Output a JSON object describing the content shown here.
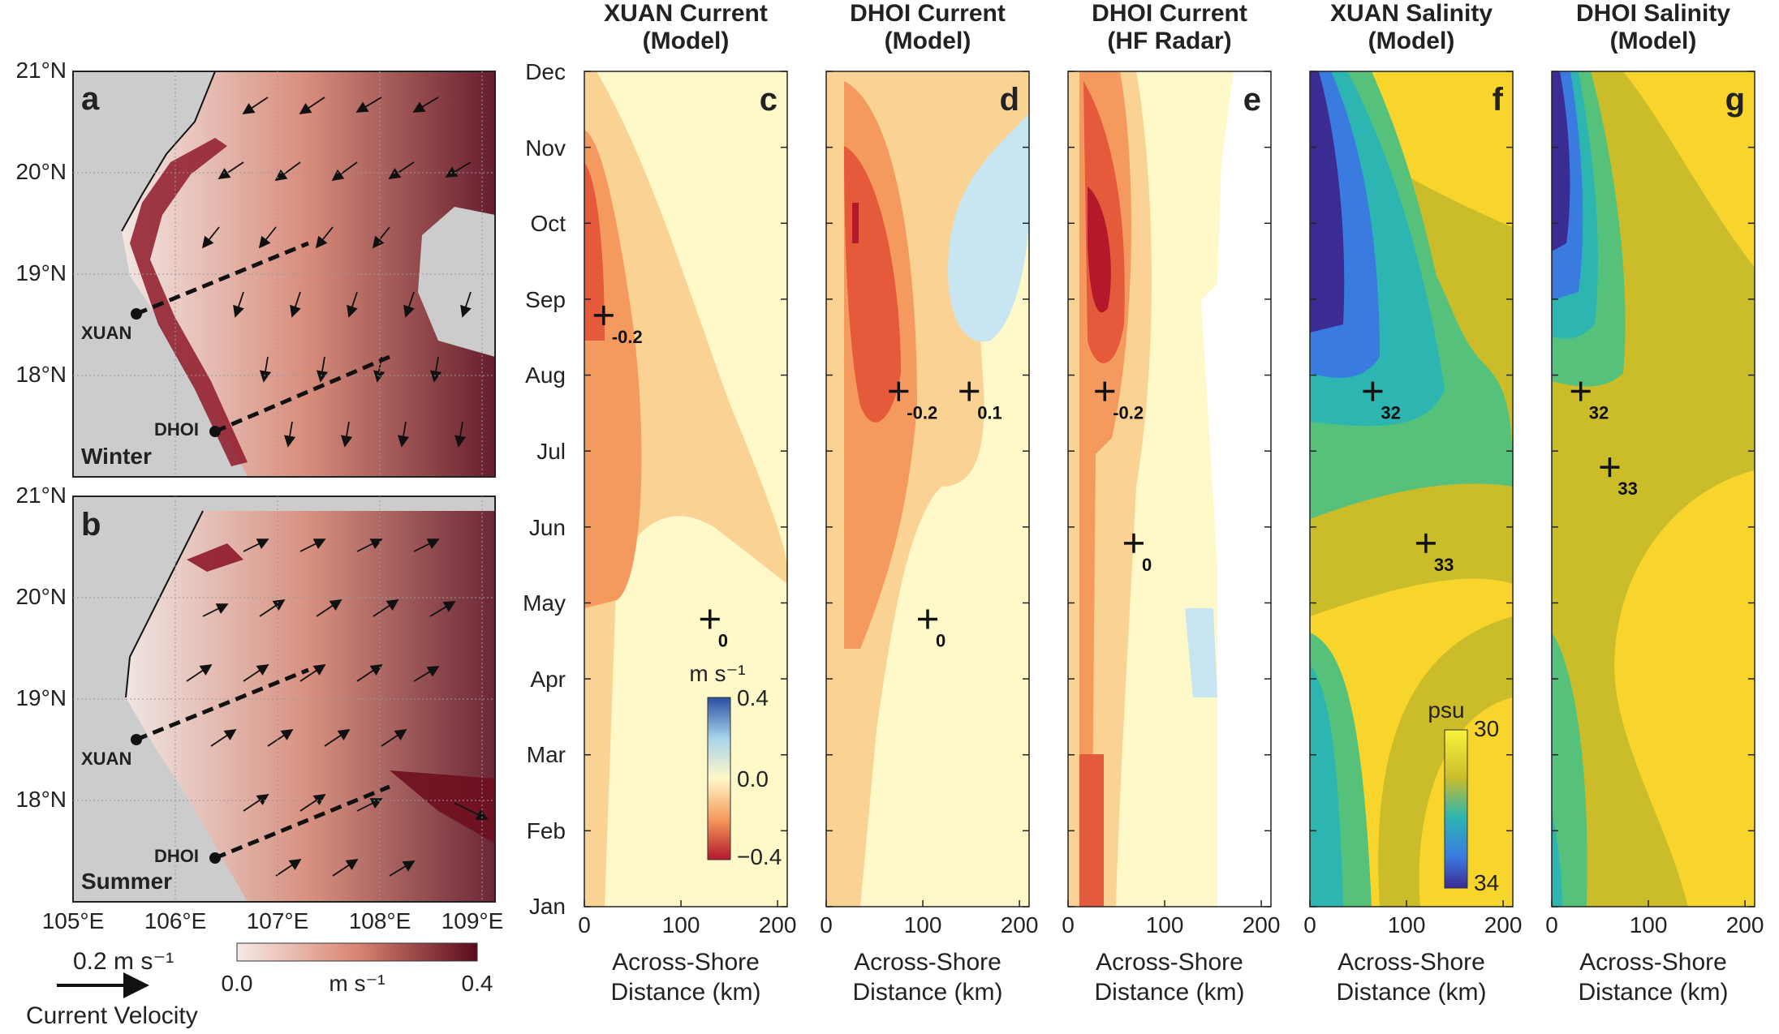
{
  "colors": {
    "land": "#cccccc",
    "sea_low": "#f6e9e6",
    "sea_mid": "#d98572",
    "sea_high": "#5a0a1c",
    "current_neg_strong": "#b3182b",
    "current_neg": "#e45a3a",
    "current_neg_mid": "#f59a5e",
    "current_neg_weak": "#fad394",
    "current_zero": "#fff8c8",
    "current_pos": "#c8e6f2",
    "sal_low": "#3b2c93",
    "sal_mid": "#2db5b1",
    "sal_green": "#56c17b",
    "sal_olive": "#cbbd2a",
    "sal_high": "#f7d52d"
  },
  "maps": {
    "lat_ticks": [
      "21°N",
      "20°N",
      "19°N",
      "18°N"
    ],
    "lon_ticks": [
      "105°E",
      "106°E",
      "107°E",
      "108°E",
      "109°E"
    ],
    "panels": [
      {
        "label": "a",
        "season": "Winter"
      },
      {
        "label": "b",
        "season": "Summer"
      }
    ],
    "sites": [
      "XUAN",
      "DHOI"
    ],
    "legend": {
      "vector_label": "0.2 m s⁻¹",
      "vector_caption": "Current Velocity",
      "colorbar_min": "0.0",
      "colorbar_max": "0.4",
      "colorbar_unit": "m s⁻¹"
    }
  },
  "contour_panels": {
    "month_ticks": [
      "Dec",
      "Nov",
      "Oct",
      "Sep",
      "Aug",
      "Jul",
      "Jun",
      "May",
      "Apr",
      "Mar",
      "Feb",
      "Jan"
    ],
    "x_ticks": [
      "0",
      "100",
      "200"
    ],
    "xlabel_line1": "Across-Shore",
    "xlabel_line2": "Distance (km)",
    "panels": [
      {
        "label": "c",
        "title1": "XUAN Current",
        "title2": "(Model)"
      },
      {
        "label": "d",
        "title1": "DHOI Current",
        "title2": "(Model)"
      },
      {
        "label": "e",
        "title1": "DHOI Current",
        "title2": "(HF Radar)"
      },
      {
        "label": "f",
        "title1": "XUAN Salinity",
        "title2": "(Model)"
      },
      {
        "label": "g",
        "title1": "DHOI Salinity",
        "title2": "(Model)"
      }
    ],
    "current_colorbar": {
      "unit": "m s⁻¹",
      "top": "0.4",
      "mid": "0.0",
      "bottom": "−0.4"
    },
    "salinity_colorbar": {
      "unit": "psu",
      "top": "30",
      "bottom": "34"
    }
  },
  "chart_data": [
    {
      "type": "heatmap",
      "title": "XUAN Current (Model)",
      "panel": "c",
      "xlabel": "Across-Shore Distance (km)",
      "xlim": [
        0,
        210
      ],
      "y_categories": [
        "Jan",
        "Feb",
        "Mar",
        "Apr",
        "May",
        "Jun",
        "Jul",
        "Aug",
        "Sep",
        "Oct",
        "Nov",
        "Dec"
      ],
      "colorbar": {
        "unit": "m s⁻¹",
        "range": [
          -0.4,
          0.4
        ]
      },
      "contour_labels": [
        {
          "text": "-0.2",
          "x": 20,
          "month": "Sep"
        },
        {
          "text": "0",
          "x": 130,
          "month": "May"
        }
      ]
    },
    {
      "type": "heatmap",
      "title": "DHOI Current (Model)",
      "panel": "d",
      "xlabel": "Across-Shore Distance (km)",
      "xlim": [
        0,
        210
      ],
      "y_categories": [
        "Jan",
        "Feb",
        "Mar",
        "Apr",
        "May",
        "Jun",
        "Jul",
        "Aug",
        "Sep",
        "Oct",
        "Nov",
        "Dec"
      ],
      "contour_labels": [
        {
          "text": "0.1",
          "x": 148,
          "month": "Aug"
        },
        {
          "text": "-0.2",
          "x": 75,
          "month": "Aug"
        },
        {
          "text": "0",
          "x": 105,
          "month": "May"
        }
      ]
    },
    {
      "type": "heatmap",
      "title": "DHOI Current (HF Radar)",
      "panel": "e",
      "xlabel": "Across-Shore Distance (km)",
      "xlim": [
        0,
        210
      ],
      "y_categories": [
        "Jan",
        "Feb",
        "Mar",
        "Apr",
        "May",
        "Jun",
        "Jul",
        "Aug",
        "Sep",
        "Oct",
        "Nov",
        "Dec"
      ],
      "contour_labels": [
        {
          "text": "-0.2",
          "x": 38,
          "month": "Aug"
        },
        {
          "text": "0",
          "x": 68,
          "month": "Jun"
        }
      ]
    },
    {
      "type": "heatmap",
      "title": "XUAN Salinity (Model)",
      "panel": "f",
      "xlabel": "Across-Shore Distance (km)",
      "xlim": [
        0,
        210
      ],
      "y_categories": [
        "Jan",
        "Feb",
        "Mar",
        "Apr",
        "May",
        "Jun",
        "Jul",
        "Aug",
        "Sep",
        "Oct",
        "Nov",
        "Dec"
      ],
      "colorbar": {
        "unit": "psu",
        "range": [
          30,
          34
        ]
      },
      "contour_labels": [
        {
          "text": "32",
          "x": 65,
          "month": "Aug"
        },
        {
          "text": "33",
          "x": 120,
          "month": "Jun"
        }
      ]
    },
    {
      "type": "heatmap",
      "title": "DHOI Salinity (Model)",
      "panel": "g",
      "xlabel": "Across-Shore Distance (km)",
      "xlim": [
        0,
        210
      ],
      "y_categories": [
        "Jan",
        "Feb",
        "Mar",
        "Apr",
        "May",
        "Jun",
        "Jul",
        "Aug",
        "Sep",
        "Oct",
        "Nov",
        "Dec"
      ],
      "contour_labels": [
        {
          "text": "32",
          "x": 30,
          "month": "Aug"
        },
        {
          "text": "33",
          "x": 60,
          "month": "Jul"
        }
      ]
    }
  ]
}
